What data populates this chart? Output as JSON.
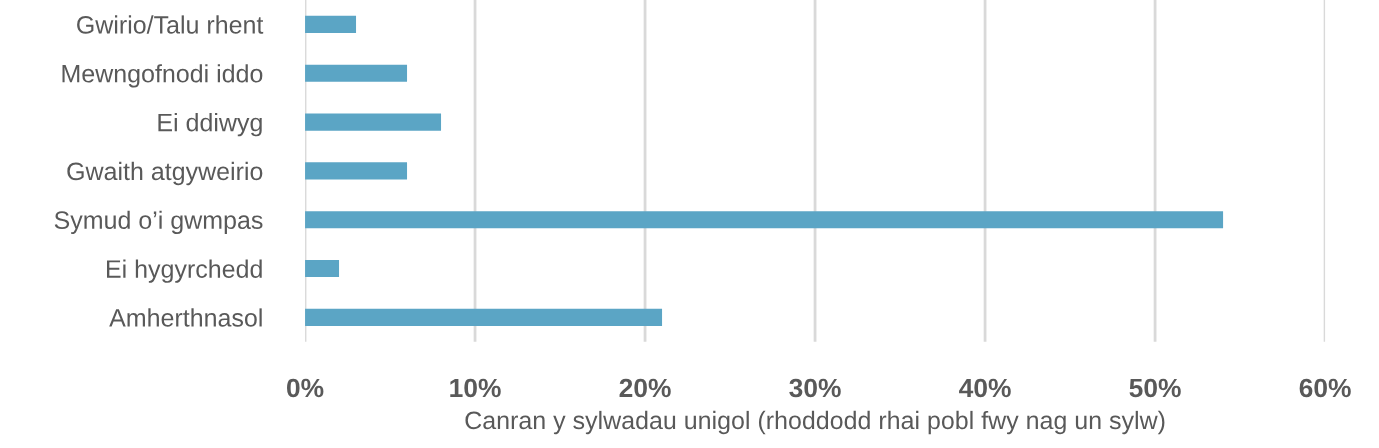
{
  "chart_data": {
    "type": "bar",
    "orientation": "horizontal",
    "categories": [
      "Gwirio/Talu rhent",
      "Mewngofnodi iddo",
      "Ei ddiwyg",
      "Gwaith atgyweirio",
      "Symud o’i gwmpas",
      "Ei hygyrchedd",
      "Amherthnasol"
    ],
    "values": [
      3,
      6,
      8,
      6,
      54,
      2,
      21
    ],
    "color": "#5ba5c5",
    "xlabel": "Canran y sylwadau unigol (rhoddodd rhai pobl fwy nag un sylw)",
    "xlim": [
      0,
      60
    ],
    "xticks": [
      {
        "value": 0,
        "label": "0%"
      },
      {
        "value": 10,
        "label": "10%"
      },
      {
        "value": 20,
        "label": "20%"
      },
      {
        "value": 30,
        "label": "30%"
      },
      {
        "value": 40,
        "label": "40%"
      },
      {
        "value": 50,
        "label": "50%"
      },
      {
        "value": 60,
        "label": "60%"
      }
    ],
    "grid": "x"
  }
}
